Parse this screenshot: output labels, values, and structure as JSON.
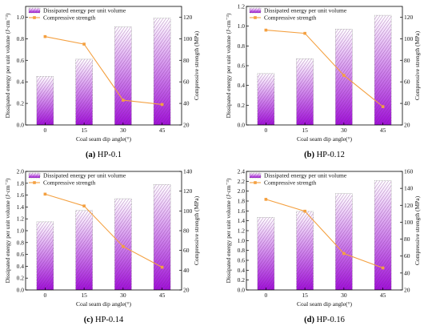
{
  "chart_data": [
    {
      "type": "bar",
      "caption_letter": "(a)",
      "caption_text": " HP-0.1",
      "categories": [
        "0",
        "15",
        "30",
        "45"
      ],
      "xlabel": "Coal seam dip angle(°)",
      "ylabel": "Dissipated energy per unit volume (J·cm⁻³)",
      "y2label": "Compressive strength (MPa)",
      "ylim": [
        0.0,
        1.1
      ],
      "y_ticks": [
        "0.0",
        "0.2",
        "0.4",
        "0.6",
        "0.8",
        "1.0"
      ],
      "y2lim": [
        20,
        130
      ],
      "y2_ticks": [
        "20",
        "40",
        "60",
        "80",
        "100",
        "120"
      ],
      "series": [
        {
          "name": "Dissipated energy per unit volume",
          "axis": "left",
          "kind": "bar",
          "values": [
            0.45,
            0.61,
            0.91,
            0.99
          ]
        },
        {
          "name": "Compressive strength",
          "axis": "right",
          "kind": "line",
          "values": [
            102,
            95,
            43,
            39
          ]
        }
      ]
    },
    {
      "type": "bar",
      "caption_letter": "(b)",
      "caption_text": " HP-0.12",
      "categories": [
        "0",
        "15",
        "30",
        "45"
      ],
      "xlabel": "Coal seam dip angle(°)",
      "ylabel": "Dissipated energy per unit volume (J·cm⁻³)",
      "y2label": "Compressive strength (MPa)",
      "ylim": [
        0.0,
        1.2
      ],
      "y_ticks": [
        "0.0",
        "0.2",
        "0.4",
        "0.6",
        "0.8",
        "1.0",
        "1.2"
      ],
      "y2lim": [
        20,
        130
      ],
      "y2_ticks": [
        "20",
        "40",
        "60",
        "80",
        "100",
        "120"
      ],
      "series": [
        {
          "name": "Dissipated energy per unit volume",
          "axis": "left",
          "kind": "bar",
          "values": [
            0.52,
            0.67,
            0.97,
            1.11
          ]
        },
        {
          "name": "Compressive strength",
          "axis": "right",
          "kind": "line",
          "values": [
            108,
            105,
            66,
            37
          ]
        }
      ]
    },
    {
      "type": "bar",
      "caption_letter": "(c)",
      "caption_text": " HP-0.14",
      "categories": [
        "0",
        "15",
        "30",
        "45"
      ],
      "xlabel": "Coal seam dip angle(°)",
      "ylabel": "Dissipated energy per unit volume (J·cm⁻³)",
      "y2label": "Compressive strength (MPa)",
      "ylim": [
        0.0,
        2.0
      ],
      "y_ticks": [
        "0.0",
        "0.2",
        "0.4",
        "0.6",
        "0.8",
        "1.0",
        "1.2",
        "1.4",
        "1.6",
        "1.8",
        "2.0"
      ],
      "y2lim": [
        20,
        140
      ],
      "y2_ticks": [
        "20",
        "40",
        "60",
        "80",
        "100",
        "120",
        "140"
      ],
      "series": [
        {
          "name": "Dissipated energy per unit volume",
          "axis": "left",
          "kind": "bar",
          "values": [
            1.15,
            1.34,
            1.54,
            1.78
          ]
        },
        {
          "name": "Compressive strength",
          "axis": "right",
          "kind": "line",
          "values": [
            117,
            105,
            64,
            43
          ]
        }
      ]
    },
    {
      "type": "bar",
      "caption_letter": "(d)",
      "caption_text": " HP-0.16",
      "categories": [
        "0",
        "15",
        "30",
        "45"
      ],
      "xlabel": "Coal seam dip angle(°)",
      "ylabel": "Dissipated energy per unit volume (J·cm⁻³)",
      "y2label": "Compressive strength (MPa)",
      "ylim": [
        0.0,
        2.4
      ],
      "y_ticks": [
        "0.0",
        "0.2",
        "0.4",
        "0.6",
        "0.8",
        "1.0",
        "1.2",
        "1.4",
        "1.6",
        "1.8",
        "2.0",
        "2.2",
        "2.4"
      ],
      "y2lim": [
        20,
        160
      ],
      "y2_ticks": [
        "20",
        "40",
        "60",
        "80",
        "100",
        "120",
        "140",
        "160"
      ],
      "series": [
        {
          "name": "Dissipated energy per unit volume",
          "axis": "left",
          "kind": "bar",
          "values": [
            1.47,
            1.59,
            1.95,
            2.21
          ]
        },
        {
          "name": "Compressive strength",
          "axis": "right",
          "kind": "line",
          "values": [
            127,
            113,
            63,
            46
          ]
        }
      ]
    }
  ],
  "colors": {
    "bar_top": "#ffffff",
    "bar_bottom": "#a010d8",
    "hatch": "#7a2a90",
    "line": "#f4a040"
  }
}
